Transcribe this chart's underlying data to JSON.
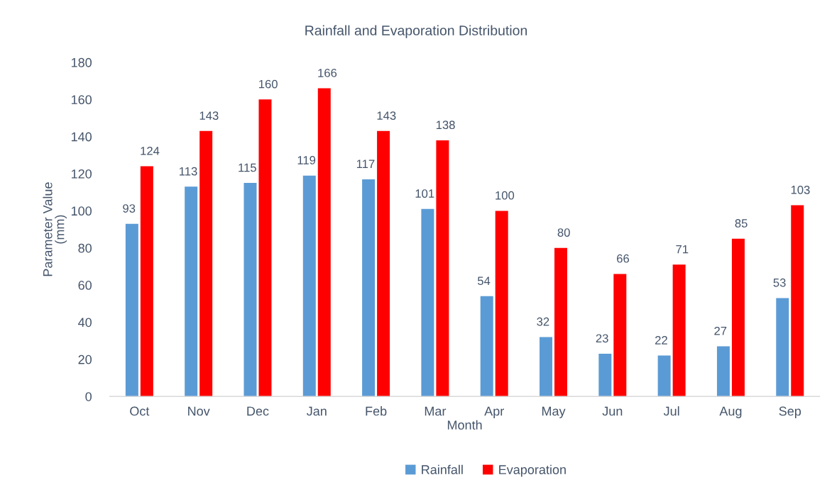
{
  "chart_data": {
    "type": "bar",
    "title": "Rainfall and Evaporation Distribution",
    "xlabel": "Month",
    "ylabel": "Parameter Value\n(mm)",
    "categories": [
      "Oct",
      "Nov",
      "Dec",
      "Jan",
      "Feb",
      "Mar",
      "Apr",
      "May",
      "Jun",
      "Jul",
      "Aug",
      "Sep"
    ],
    "series": [
      {
        "name": "Rainfall",
        "color": "#5b9bd5",
        "values": [
          93,
          113,
          115,
          119,
          117,
          101,
          54,
          32,
          23,
          22,
          27,
          53
        ]
      },
      {
        "name": "Evaporation",
        "color": "#ff0000",
        "values": [
          124,
          143,
          160,
          166,
          143,
          138,
          100,
          80,
          66,
          71,
          85,
          103
        ]
      }
    ],
    "ylim": [
      0,
      180
    ],
    "yticks": [
      0,
      20,
      40,
      60,
      80,
      100,
      120,
      140,
      160,
      180
    ],
    "data_labels": true,
    "grid": false,
    "legend": "bottom"
  }
}
